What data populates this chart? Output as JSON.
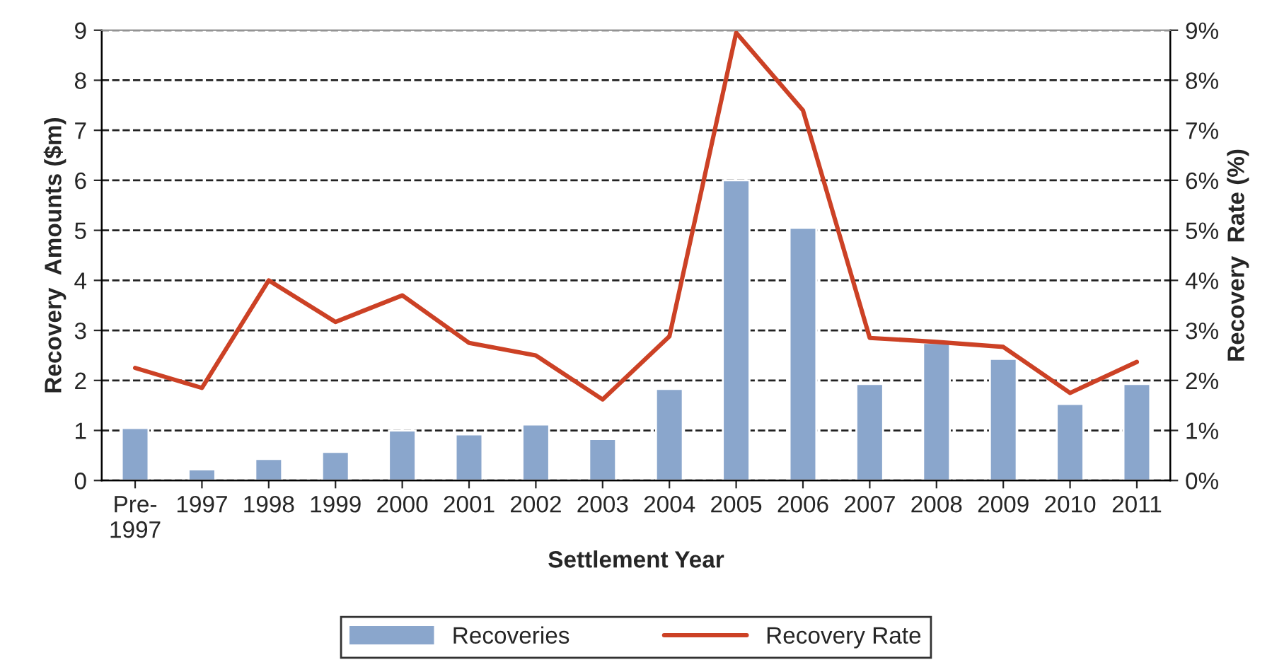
{
  "chart_data": {
    "type": "bar",
    "xlabel": "Settlement Year",
    "ylabel": "Recovery  Amounts ($m)",
    "y2label": "Recovery  Rate (%)",
    "categories": [
      "Pre-\n1997",
      "1997",
      "1998",
      "1999",
      "2000",
      "2001",
      "2002",
      "2003",
      "2004",
      "2005",
      "2006",
      "2007",
      "2008",
      "2009",
      "2010",
      "2011"
    ],
    "series": [
      {
        "name": "Recoveries",
        "color": "#8aa6cc",
        "values": [
          1.05,
          0.22,
          0.43,
          0.57,
          1.0,
          0.92,
          1.12,
          0.83,
          1.83,
          6.0,
          5.05,
          1.93,
          2.75,
          2.43,
          1.53,
          1.93
        ]
      },
      {
        "name": "Recovery Rate",
        "type": "line",
        "axis": "y2",
        "color": "#cc4125",
        "values": [
          2.25,
          1.85,
          4.0,
          3.17,
          3.7,
          2.75,
          2.5,
          1.62,
          2.88,
          8.95,
          7.4,
          2.85,
          2.77,
          2.67,
          1.75,
          2.37
        ]
      }
    ],
    "ylim": [
      0,
      9
    ],
    "yticks": [
      0,
      1,
      2,
      3,
      4,
      5,
      6,
      7,
      8,
      9
    ],
    "y2lim": [
      0,
      9
    ],
    "y2ticks": [
      {
        "value": 0,
        "label": "0%"
      },
      {
        "value": 1,
        "label": "1%"
      },
      {
        "value": 2,
        "label": "2%"
      },
      {
        "value": 3,
        "label": "3%"
      },
      {
        "value": 4,
        "label": "4%"
      },
      {
        "value": 5,
        "label": "5%"
      },
      {
        "value": 6,
        "label": "6%"
      },
      {
        "value": 7,
        "label": "7%"
      },
      {
        "value": 8,
        "label": "8%"
      },
      {
        "value": 9,
        "label": "9%"
      }
    ],
    "grid": "y",
    "legend": "bottom",
    "line_style": "solid",
    "marker": "none"
  }
}
